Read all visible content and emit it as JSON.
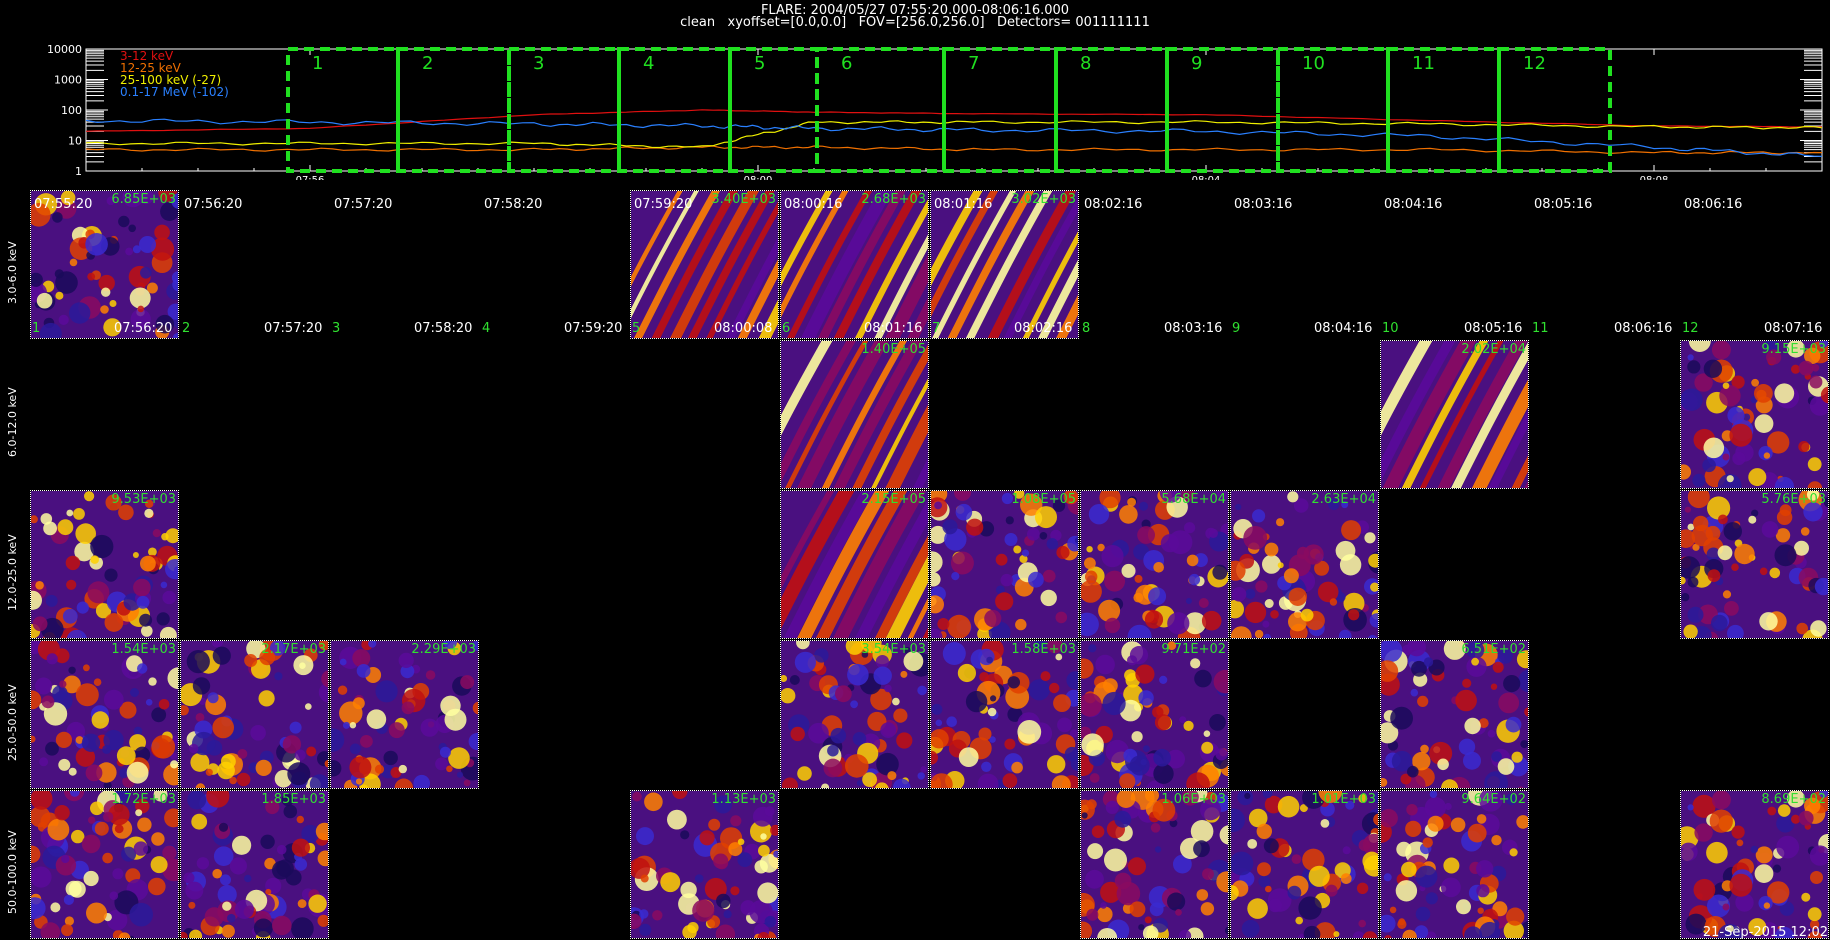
{
  "header": {
    "title": "FLARE: 2004/05/27 07:55:20.000-08:06:16.000",
    "params": "clean   xyoffset=[0.0,0.0]   FOV=[256.0,256.0]   Detectors= 001111111"
  },
  "lightcurve": {
    "y_ticks": [
      "10000",
      "1000",
      "100",
      "10",
      "1"
    ],
    "x_ticks": [
      "07:56",
      "08:00",
      "08:04",
      "08:08"
    ],
    "legend": [
      {
        "label": "3-12 keV",
        "color": "#e01010"
      },
      {
        "label": "12-25 keV",
        "color": "#f07000"
      },
      {
        "label": "25-100 keV (-27)",
        "color": "#f0f000"
      },
      {
        "label": "0.1-17 MeV (-102)",
        "color": "#2a80ff"
      }
    ],
    "intervals": [
      "1",
      "2",
      "3",
      "4",
      "5",
      "6",
      "7",
      "8",
      "9",
      "10",
      "11",
      "12"
    ]
  },
  "chart_data": {
    "type": "line",
    "title": "",
    "ylabel": "",
    "xlabel": "",
    "y_scale": "log",
    "ylim": [
      1,
      10000
    ],
    "xlim": [
      "07:54:00",
      "08:09:30"
    ],
    "series": [
      {
        "name": "3-12 keV",
        "color": "#e01010",
        "x": [
          "07:54:00",
          "07:56:00",
          "07:58:00",
          "07:59:30",
          "08:00:30",
          "08:02:00",
          "08:04:00",
          "08:06:00",
          "08:08:00",
          "08:09:30"
        ],
        "values": [
          20,
          25,
          70,
          100,
          85,
          75,
          70,
          45,
          30,
          28
        ]
      },
      {
        "name": "12-25 keV",
        "color": "#f07000",
        "x": [
          "07:54:00",
          "07:56:00",
          "07:58:00",
          "07:59:30",
          "08:00:30",
          "08:02:00",
          "08:04:00",
          "08:06:00",
          "08:08:00",
          "08:09:30"
        ],
        "values": [
          5,
          5,
          5,
          6,
          6,
          5,
          5,
          5,
          4,
          4
        ]
      },
      {
        "name": "25-100 keV (-27)",
        "color": "#f0f000",
        "x": [
          "07:54:00",
          "07:56:00",
          "07:58:00",
          "07:59:30",
          "08:00:30",
          "08:02:00",
          "08:04:00",
          "08:06:00",
          "08:08:00",
          "08:09:30"
        ],
        "values": [
          8,
          8,
          8,
          6,
          40,
          40,
          40,
          35,
          28,
          26
        ]
      },
      {
        "name": "0.1-17 MeV (-102)",
        "color": "#2a80ff",
        "x": [
          "07:54:00",
          "07:56:00",
          "07:58:00",
          "07:59:30",
          "08:00:30",
          "08:02:00",
          "08:04:00",
          "08:06:00",
          "08:08:00",
          "08:09:30"
        ],
        "values": [
          45,
          40,
          35,
          30,
          25,
          22,
          20,
          14,
          6,
          3
        ]
      }
    ]
  },
  "rows": [
    "3.0-6.0 keV",
    "6.0-12.0 keV",
    "12.0-25.0 keV",
    "25.0-50.0 keV",
    "50.0-100.0 keV"
  ],
  "top_times": [
    "07:55:20",
    "07:56:20",
    "07:57:20",
    "07:58:20",
    "07:59:20",
    "08:00:16",
    "08:01:16",
    "08:02:16",
    "08:03:16",
    "08:04:16",
    "08:05:16",
    "08:06:16"
  ],
  "bottom_times": [
    "07:56:20",
    "07:57:20",
    "07:58:20",
    "07:59:20",
    "08:00:08",
    "08:01:16",
    "08:02:16",
    "08:03:16",
    "08:04:16",
    "08:05:16",
    "08:06:16",
    "08:07:16"
  ],
  "interval_numbers": [
    "1",
    "2",
    "3",
    "4",
    "5",
    "6",
    "7",
    "8",
    "9",
    "10",
    "11",
    "12"
  ],
  "tiles": [
    {
      "row": 0,
      "col": 0,
      "peak": "6.85E+03",
      "style": "blob"
    },
    {
      "row": 0,
      "col": 4,
      "peak": "3.40E+03",
      "style": "streak"
    },
    {
      "row": 0,
      "col": 5,
      "peak": "2.68E+03",
      "style": "streak"
    },
    {
      "row": 0,
      "col": 6,
      "peak": "3.02E+03",
      "style": "streak"
    },
    {
      "row": 1,
      "col": 5,
      "peak": "1.40E+05",
      "style": "streak"
    },
    {
      "row": 1,
      "col": 9,
      "peak": "2.02E+04",
      "style": "streak"
    },
    {
      "row": 1,
      "col": 11,
      "peak": "9.15E+03",
      "style": "blob"
    },
    {
      "row": 2,
      "col": 0,
      "peak": "9.53E+03",
      "style": "blob"
    },
    {
      "row": 2,
      "col": 5,
      "peak": "2.15E+05",
      "style": "streak"
    },
    {
      "row": 2,
      "col": 6,
      "peak": "1.08E+05",
      "style": "blob"
    },
    {
      "row": 2,
      "col": 7,
      "peak": "5.68E+04",
      "style": "blob"
    },
    {
      "row": 2,
      "col": 8,
      "peak": "2.63E+04",
      "style": "blob"
    },
    {
      "row": 2,
      "col": 11,
      "peak": "5.76E+03",
      "style": "blob"
    },
    {
      "row": 3,
      "col": 0,
      "peak": "1.54E+03",
      "style": "blob"
    },
    {
      "row": 3,
      "col": 1,
      "peak": "2.17E+03",
      "style": "blob"
    },
    {
      "row": 3,
      "col": 2,
      "peak": "2.29E+03",
      "style": "blob"
    },
    {
      "row": 3,
      "col": 5,
      "peak": "3.54E+03",
      "style": "blob"
    },
    {
      "row": 3,
      "col": 6,
      "peak": "1.58E+03",
      "style": "blob"
    },
    {
      "row": 3,
      "col": 7,
      "peak": "9.71E+02",
      "style": "blob"
    },
    {
      "row": 3,
      "col": 9,
      "peak": "6.51E+02",
      "style": "blob"
    },
    {
      "row": 4,
      "col": 0,
      "peak": "1.72E+03",
      "style": "blob"
    },
    {
      "row": 4,
      "col": 1,
      "peak": "1.85E+03",
      "style": "blob"
    },
    {
      "row": 4,
      "col": 4,
      "peak": "1.13E+03",
      "style": "blob"
    },
    {
      "row": 4,
      "col": 7,
      "peak": "1.06E+03",
      "style": "blob"
    },
    {
      "row": 4,
      "col": 8,
      "peak": "1.01E+03",
      "style": "blob"
    },
    {
      "row": 4,
      "col": 9,
      "peak": "9.64E+02",
      "style": "blob"
    },
    {
      "row": 4,
      "col": 11,
      "peak": "8.69E+02",
      "style": "blob"
    }
  ],
  "stamp": "21-Sep-2015 12:02"
}
